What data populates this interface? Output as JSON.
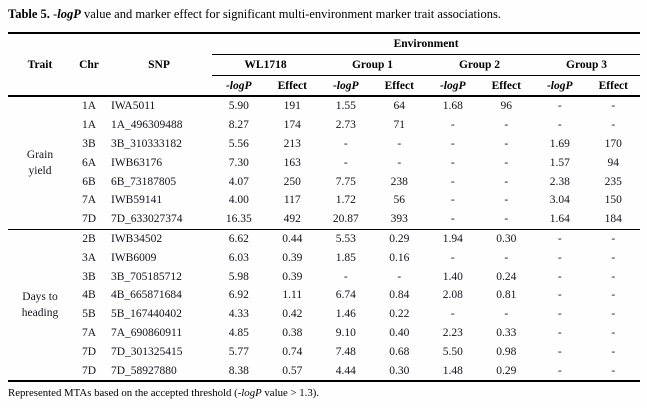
{
  "title": {
    "bold": "Table 5.",
    "dash": " -",
    "italic_term": "logP",
    "rest": " value and marker effect for significant multi-environment marker trait associations."
  },
  "table": {
    "env_header": "Environment",
    "col_headers": {
      "trait": "Trait",
      "chr": "Chr",
      "snp": "SNP"
    },
    "groups": [
      "WL1718",
      "Group 1",
      "Group 2",
      "Group 3"
    ],
    "sub_headers": {
      "logp": "-logP",
      "effect": "Effect"
    },
    "sections": [
      {
        "trait": "Grain yield",
        "rows": [
          {
            "chr": "1A",
            "snp": "IWA5011",
            "values": [
              "5.90",
              "191",
              "1.55",
              "64",
              "1.68",
              "96",
              "-",
              "-"
            ]
          },
          {
            "chr": "1A",
            "snp": "1A_496309488",
            "values": [
              "8.27",
              "174",
              "2.73",
              "71",
              "-",
              "-",
              "-",
              "-"
            ]
          },
          {
            "chr": "3B",
            "snp": "3B_310333182",
            "values": [
              "5.56",
              "213",
              "-",
              "-",
              "-",
              "-",
              "1.69",
              "170"
            ]
          },
          {
            "chr": "6A",
            "snp": "IWB63176",
            "values": [
              "7.30",
              "163",
              "-",
              "-",
              "-",
              "-",
              "1.57",
              "94"
            ]
          },
          {
            "chr": "6B",
            "snp": "6B_73187805",
            "values": [
              "4.07",
              "250",
              "7.75",
              "238",
              "-",
              "-",
              "2.38",
              "235"
            ]
          },
          {
            "chr": "7A",
            "snp": "IWB59141",
            "values": [
              "4.00",
              "117",
              "1.72",
              "56",
              "-",
              "-",
              "3.04",
              "150"
            ]
          },
          {
            "chr": "7D",
            "snp": "7D_633027374",
            "values": [
              "16.35",
              "492",
              "20.87",
              "393",
              "-",
              "-",
              "1.64",
              "184"
            ]
          }
        ]
      },
      {
        "trait": "Days to heading",
        "rows": [
          {
            "chr": "2B",
            "snp": "IWB34502",
            "values": [
              "6.62",
              "0.44",
              "5.53",
              "0.29",
              "1.94",
              "0.30",
              "-",
              "-"
            ]
          },
          {
            "chr": "3A",
            "snp": "IWB6009",
            "values": [
              "6.03",
              "0.39",
              "1.85",
              "0.16",
              "-",
              "-",
              "-",
              "-"
            ]
          },
          {
            "chr": "3B",
            "snp": "3B_705185712",
            "values": [
              "5.98",
              "0.39",
              "-",
              "-",
              "1.40",
              "0.24",
              "-",
              "-"
            ]
          },
          {
            "chr": "4B",
            "snp": "4B_665871684",
            "values": [
              "6.92",
              "1.11",
              "6.74",
              "0.84",
              "2.08",
              "0.81",
              "-",
              "-"
            ]
          },
          {
            "chr": "5B",
            "snp": "5B_167440402",
            "values": [
              "4.33",
              "0.42",
              "1.46",
              "0.22",
              "-",
              "-",
              "-",
              "-"
            ]
          },
          {
            "chr": "7A",
            "snp": "7A_690860911",
            "values": [
              "4.85",
              "0.38",
              "9.10",
              "0.40",
              "2.23",
              "0.33",
              "-",
              "-"
            ]
          },
          {
            "chr": "7D",
            "snp": "7D_301325415",
            "values": [
              "5.77",
              "0.74",
              "7.48",
              "0.68",
              "5.50",
              "0.98",
              "-",
              "-"
            ]
          },
          {
            "chr": "7D",
            "snp": "7D_58927880",
            "values": [
              "8.38",
              "0.57",
              "4.44",
              "0.30",
              "1.48",
              "0.29",
              "-",
              "-"
            ]
          }
        ]
      }
    ]
  },
  "footnote": {
    "pre": "Represented MTAs based on the accepted threshold (-",
    "italic_term": "logP",
    "post": " value > 1.3)."
  },
  "colors": {
    "text": "#14141e",
    "rule": "#000000",
    "background": "#fefefe"
  }
}
